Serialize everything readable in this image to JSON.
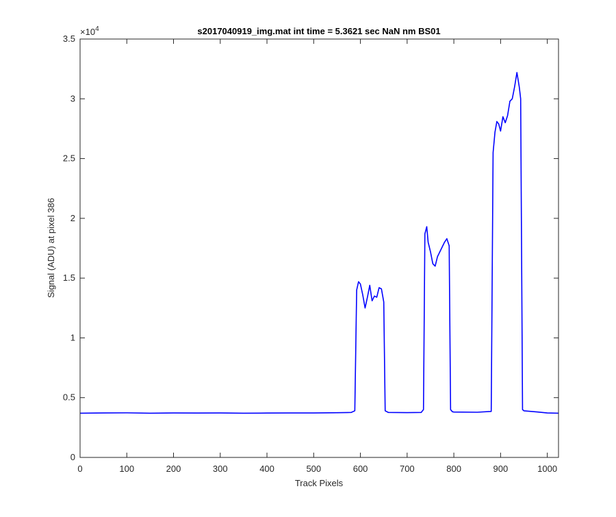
{
  "chart_data": {
    "type": "line",
    "title": "s2017040919_img.mat int time = 5.3621 sec  NaN nm BS01",
    "xlabel": "Track Pixels",
    "ylabel": "Signal (ADU) at pixel 386",
    "xlim": [
      0,
      1024
    ],
    "ylim": [
      0,
      35000
    ],
    "y_exponent_label": "×10",
    "y_exponent_value": "4",
    "xticks": [
      0,
      100,
      200,
      300,
      400,
      500,
      600,
      700,
      800,
      900,
      1000
    ],
    "yticks": [
      0,
      5000,
      10000,
      15000,
      20000,
      25000,
      30000,
      35000
    ],
    "ytick_labels": [
      "0",
      "0.5",
      "1",
      "1.5",
      "2",
      "2.5",
      "3",
      "3.5"
    ],
    "grid": false,
    "line_color": "#0000ff",
    "series": [
      {
        "x": [
          0,
          50,
          100,
          150,
          200,
          250,
          300,
          350,
          400,
          450,
          500,
          550,
          580,
          588,
          592,
          596,
          600,
          605,
          610,
          615,
          620,
          625,
          630,
          635,
          640,
          645,
          650,
          653,
          660,
          700,
          730,
          735,
          738,
          742,
          745,
          750,
          755,
          760,
          765,
          770,
          775,
          780,
          785,
          790,
          793,
          797,
          800,
          850,
          880,
          884,
          888,
          892,
          896,
          900,
          905,
          910,
          915,
          920,
          925,
          930,
          935,
          940,
          943,
          947,
          950,
          980,
          1000,
          1024
        ],
        "y": [
          3700,
          3720,
          3730,
          3700,
          3720,
          3710,
          3720,
          3700,
          3710,
          3720,
          3720,
          3740,
          3760,
          3900,
          14000,
          14700,
          14500,
          13600,
          12500,
          13400,
          14400,
          13100,
          13500,
          13400,
          14200,
          14100,
          13000,
          3900,
          3760,
          3750,
          3760,
          4000,
          18700,
          19300,
          18000,
          17200,
          16200,
          16000,
          16800,
          17200,
          17600,
          18000,
          18300,
          17700,
          4000,
          3820,
          3800,
          3780,
          3850,
          25500,
          27200,
          28100,
          27900,
          27300,
          28500,
          28000,
          28600,
          29800,
          30000,
          31000,
          32200,
          31000,
          30000,
          4000,
          3900,
          3800,
          3720,
          3700
        ]
      }
    ]
  }
}
